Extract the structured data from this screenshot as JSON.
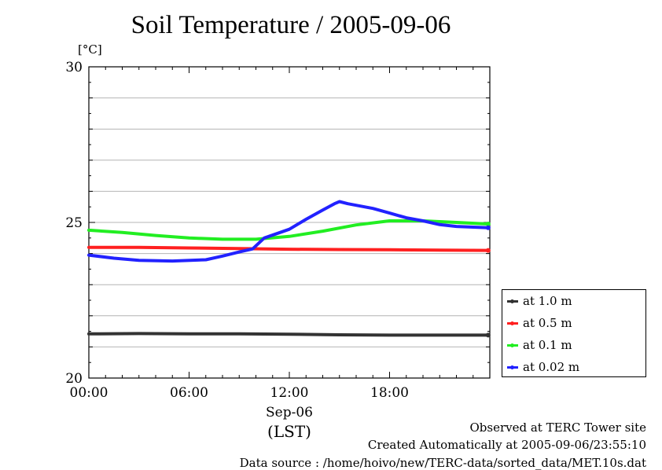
{
  "title": "Soil Temperature / 2005-09-06",
  "colors": {
    "axis": "#000000",
    "grid": "#b4b4b4"
  },
  "chart_data": {
    "type": "line",
    "title": "Soil Temperature / 2005-09-06",
    "ylabel": "[°C]",
    "xlabel": "Sep-06",
    "xlabel_sub": "(LST)",
    "xlim": [
      0,
      24
    ],
    "ylim": [
      20,
      30
    ],
    "x_ticks": [
      0,
      6,
      12,
      18
    ],
    "x_tick_labels": [
      "00:00",
      "06:00",
      "12:00",
      "18:00"
    ],
    "y_ticks": [
      20,
      25,
      30
    ],
    "y_tick_labels": [
      "20",
      "25",
      "30"
    ],
    "y_grid": [
      21,
      22,
      23,
      24,
      26,
      27,
      28,
      29
    ],
    "grid": true,
    "legend_position": "right",
    "series": [
      {
        "name": "at 1.0 m",
        "color": "#333333",
        "points": [
          [
            0,
            21.42
          ],
          [
            3,
            21.43
          ],
          [
            6,
            21.42
          ],
          [
            9,
            21.42
          ],
          [
            12,
            21.41
          ],
          [
            15,
            21.39
          ],
          [
            18,
            21.38
          ],
          [
            21,
            21.38
          ],
          [
            23.9,
            21.38
          ]
        ]
      },
      {
        "name": "at 0.5 m",
        "color": "#ff2020",
        "points": [
          [
            0,
            24.2
          ],
          [
            3,
            24.2
          ],
          [
            6,
            24.18
          ],
          [
            9,
            24.16
          ],
          [
            12,
            24.14
          ],
          [
            15,
            24.13
          ],
          [
            18,
            24.12
          ],
          [
            21,
            24.11
          ],
          [
            23.9,
            24.1
          ]
        ]
      },
      {
        "name": "at 0.1 m",
        "color": "#22ee22",
        "points": [
          [
            0,
            24.75
          ],
          [
            2,
            24.68
          ],
          [
            4,
            24.58
          ],
          [
            6,
            24.5
          ],
          [
            8,
            24.46
          ],
          [
            10,
            24.46
          ],
          [
            12,
            24.55
          ],
          [
            14,
            24.72
          ],
          [
            16,
            24.92
          ],
          [
            18,
            25.05
          ],
          [
            20,
            25.05
          ],
          [
            22,
            25.0
          ],
          [
            23.9,
            24.95
          ]
        ]
      },
      {
        "name": "at 0.02 m",
        "color": "#2222ff",
        "points": [
          [
            0,
            23.95
          ],
          [
            1.5,
            23.85
          ],
          [
            3,
            23.78
          ],
          [
            5,
            23.76
          ],
          [
            7,
            23.8
          ],
          [
            8,
            23.92
          ],
          [
            9,
            24.05
          ],
          [
            9.8,
            24.15
          ],
          [
            10.5,
            24.5
          ],
          [
            12,
            24.78
          ],
          [
            13,
            25.1
          ],
          [
            14,
            25.4
          ],
          [
            14.7,
            25.6
          ],
          [
            15,
            25.67
          ],
          [
            15.5,
            25.6
          ],
          [
            17,
            25.45
          ],
          [
            18,
            25.3
          ],
          [
            19,
            25.15
          ],
          [
            20,
            25.05
          ],
          [
            21,
            24.93
          ],
          [
            22,
            24.87
          ],
          [
            23.9,
            24.83
          ]
        ]
      }
    ]
  },
  "footer": {
    "line1": "Observed at TERC Tower site",
    "line2": "Created Automatically at 2005-09-06/23:55:10",
    "line3": "Data source : /home/hoivo/new/TERC-data/sorted_data/MET.10s.dat"
  }
}
